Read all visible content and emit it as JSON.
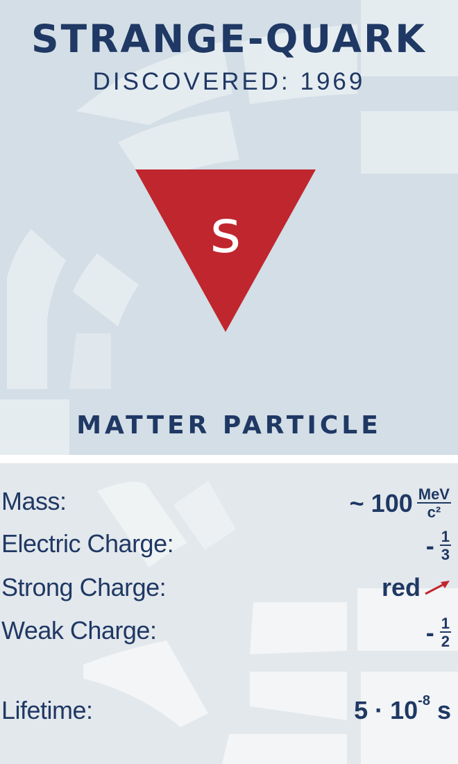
{
  "card": {
    "title": "STRANGE-QUARK",
    "discovered": "DISCOVERED: 1969",
    "symbol": "s",
    "category": "MATTER PARTICLE"
  },
  "colors": {
    "navy": "#1f3864",
    "symbol_red": "#c0262e",
    "top_bg": "#d3dee6",
    "bottom_bg": "#e3e8ec"
  },
  "properties": {
    "mass": {
      "label": "Mass:",
      "value": "~ 100",
      "unit_num": "MeV",
      "unit_den": "c²"
    },
    "electric": {
      "label": "Electric Charge:",
      "sign": "-",
      "num": "1",
      "den": "3"
    },
    "strong": {
      "label": "Strong Charge:",
      "value": "red",
      "icon": "red-arrow-icon"
    },
    "weak": {
      "label": "Weak Charge:",
      "sign": "-",
      "num": "1",
      "den": "2"
    },
    "lifetime": {
      "label": "Lifetime:",
      "base": "5 · 10",
      "exponent": "-8",
      "unit": " s"
    }
  }
}
